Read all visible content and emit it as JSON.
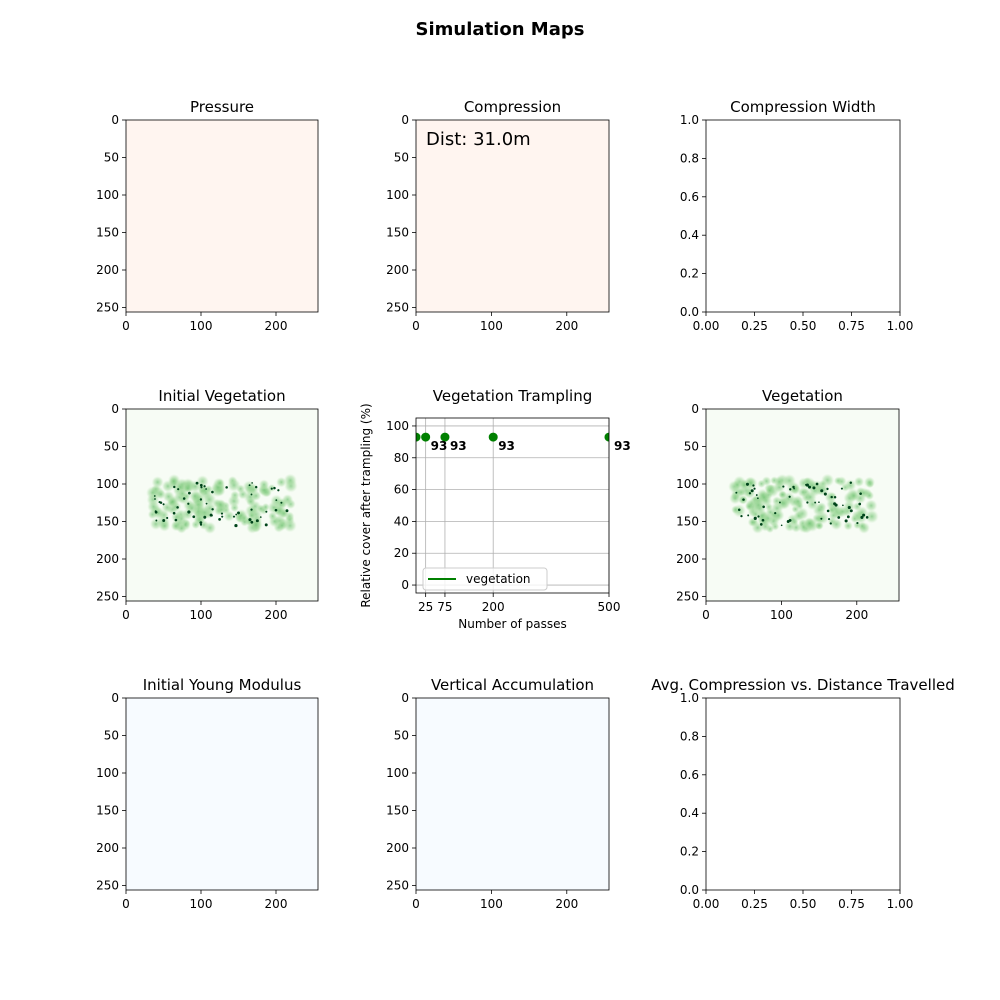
{
  "figure": {
    "title": "Simulation Maps"
  },
  "chart_data": [
    {
      "id": "pressure",
      "type": "heatmap",
      "title": "Pressure",
      "xticks": [
        "0",
        "100",
        "200"
      ],
      "yticks": [
        "0",
        "50",
        "100",
        "150",
        "200",
        "250"
      ],
      "xlim": [
        0,
        256
      ],
      "ylim": [
        256,
        0
      ],
      "fill": "#fff5f0"
    },
    {
      "id": "compression",
      "type": "heatmap",
      "title": "Compression",
      "overlay_text": "Dist: 31.0m",
      "xticks": [
        "0",
        "100",
        "200"
      ],
      "yticks": [
        "0",
        "50",
        "100",
        "150",
        "200",
        "250"
      ],
      "xlim": [
        0,
        256
      ],
      "ylim": [
        256,
        0
      ],
      "fill": "#fff5f0"
    },
    {
      "id": "compression-width",
      "type": "line",
      "title": "Compression Width",
      "xticks": [
        "0.00",
        "0.25",
        "0.50",
        "0.75",
        "1.00"
      ],
      "yticks": [
        "0.0",
        "0.2",
        "0.4",
        "0.6",
        "0.8",
        "1.0"
      ],
      "xlim": [
        0,
        1
      ],
      "ylim": [
        0,
        1
      ]
    },
    {
      "id": "initial-vegetation",
      "type": "heatmap",
      "title": "Initial Vegetation",
      "xticks": [
        "0",
        "100",
        "200"
      ],
      "yticks": [
        "0",
        "50",
        "100",
        "150",
        "200",
        "250"
      ],
      "xlim": [
        0,
        256
      ],
      "ylim": [
        256,
        0
      ],
      "fill": "#f7fcf5",
      "patch_color": "#a1d99b"
    },
    {
      "id": "vegetation-trampling",
      "type": "scatter",
      "title": "Vegetation Trampling",
      "xlabel": "Number of passes",
      "ylabel": "Relative cover after trampling (%)",
      "xlim": [
        0,
        500
      ],
      "ylim": [
        -5,
        105
      ],
      "xticks": [
        "25",
        "75",
        "200",
        "500"
      ],
      "xtick_values": [
        25,
        75,
        200,
        500
      ],
      "yticks": [
        "0",
        "20",
        "40",
        "60",
        "80",
        "100"
      ],
      "ytick_values": [
        0,
        20,
        40,
        60,
        80,
        100
      ],
      "grid": true,
      "legend": {
        "label": "vegetation",
        "placement": "lower-left"
      },
      "series": [
        {
          "name": "vegetation",
          "color": "#008000",
          "x": [
            0,
            25,
            75,
            200,
            500
          ],
          "y": [
            93,
            93,
            93,
            93,
            93
          ],
          "labels": [
            "93",
            "93",
            "93",
            "93",
            "93"
          ]
        }
      ]
    },
    {
      "id": "vegetation",
      "type": "heatmap",
      "title": "Vegetation",
      "xticks": [
        "0",
        "100",
        "200"
      ],
      "yticks": [
        "0",
        "50",
        "100",
        "150",
        "200",
        "250"
      ],
      "xlim": [
        0,
        256
      ],
      "ylim": [
        256,
        0
      ],
      "fill": "#f7fcf5",
      "patch_color": "#a1d99b"
    },
    {
      "id": "initial-young-modulus",
      "type": "heatmap",
      "title": "Initial Young Modulus",
      "xticks": [
        "0",
        "100",
        "200"
      ],
      "yticks": [
        "0",
        "50",
        "100",
        "150",
        "200",
        "250"
      ],
      "xlim": [
        0,
        256
      ],
      "ylim": [
        256,
        0
      ],
      "fill": "#f7fbff"
    },
    {
      "id": "vertical-accumulation",
      "type": "heatmap",
      "title": "Vertical Accumulation",
      "xticks": [
        "0",
        "100",
        "200"
      ],
      "yticks": [
        "0",
        "50",
        "100",
        "150",
        "200",
        "250"
      ],
      "xlim": [
        0,
        256
      ],
      "ylim": [
        256,
        0
      ],
      "fill": "#f7fbff"
    },
    {
      "id": "avg-compression-distance",
      "type": "line",
      "title": "Avg. Compression vs. Distance Travelled",
      "xticks": [
        "0.00",
        "0.25",
        "0.50",
        "0.75",
        "1.00"
      ],
      "yticks": [
        "0.0",
        "0.2",
        "0.4",
        "0.6",
        "0.8",
        "1.0"
      ],
      "xlim": [
        0,
        1
      ],
      "ylim": [
        0,
        1
      ]
    }
  ]
}
